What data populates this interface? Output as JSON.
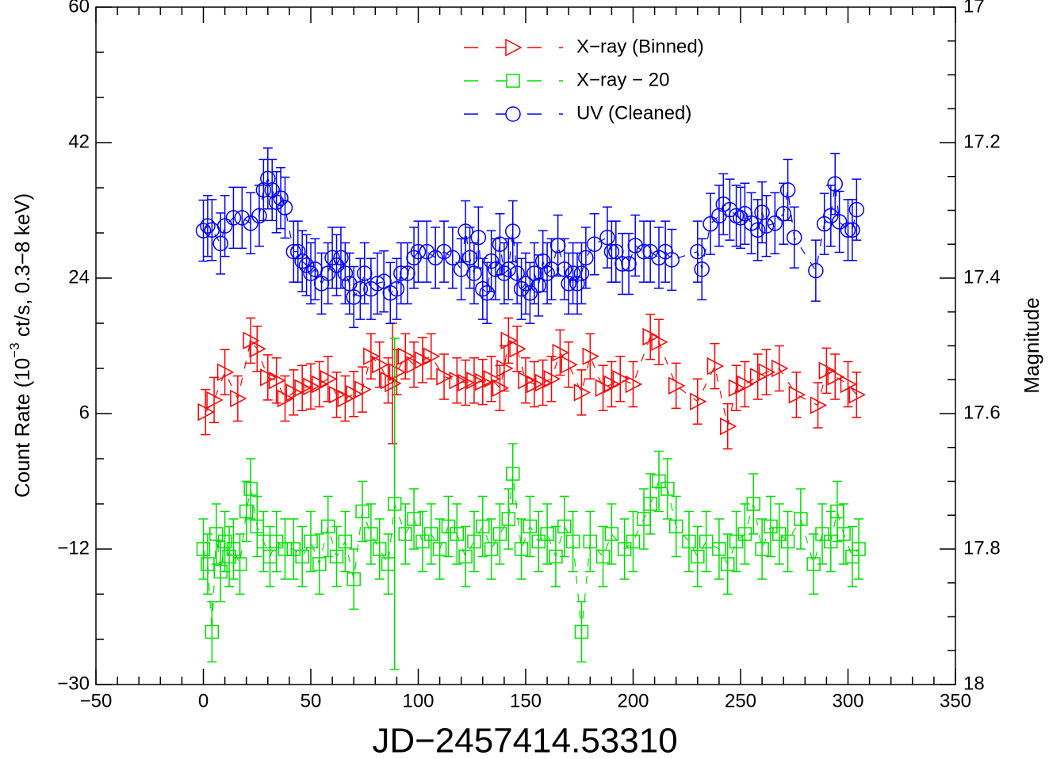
{
  "chart_data": {
    "type": "scatter",
    "xlabel": "JD−2457414.53310",
    "ylabel": [
      "Count Rate (10",
      "−3",
      " ct/s, 0.3−8 keV)"
    ],
    "y2label": "Magnitude",
    "xlim": [
      -50,
      350
    ],
    "xticks": [
      {
        "value": -50,
        "label": "−50"
      },
      0,
      50,
      100,
      150,
      200,
      250,
      300,
      350
    ],
    "ylim": [
      -30,
      60
    ],
    "yticks": [
      {
        "value": -30,
        "label": "−30"
      },
      {
        "value": -12,
        "label": "−12"
      },
      6,
      24,
      42,
      60
    ],
    "y2lim": [
      18,
      17
    ],
    "y2ticks": [
      18,
      17.8,
      17.6,
      17.4,
      17.2,
      17
    ],
    "legend": "upper center",
    "series": [
      {
        "name": "X−ray (Binned)",
        "color": "#ff0000",
        "marker": "triangle-right",
        "axis": "y",
        "x": [
          1,
          5,
          10,
          16,
          22,
          25,
          30,
          34,
          38,
          42,
          46,
          50,
          54,
          58,
          62,
          66,
          70,
          74,
          78,
          82,
          86,
          88,
          90,
          94,
          98,
          102,
          106,
          112,
          118,
          122,
          126,
          130,
          134,
          138,
          140,
          142,
          146,
          150,
          154,
          158,
          162,
          166,
          170,
          176,
          180,
          186,
          190,
          194,
          200,
          208,
          212,
          220,
          230,
          238,
          244,
          248,
          252,
          258,
          262,
          268,
          276,
          286,
          290,
          294,
          300,
          304
        ],
        "values": [
          6.2,
          7.8,
          11.5,
          8.0,
          15.7,
          14.6,
          10.8,
          10.4,
          8.0,
          8.8,
          9.4,
          9.6,
          9.9,
          10.6,
          8.5,
          8.0,
          8.6,
          9.2,
          13.6,
          12.5,
          10.4,
          10.0,
          11.5,
          13.6,
          12.5,
          13.1,
          13.6,
          10.9,
          10.4,
          10.1,
          10.4,
          10.2,
          10.6,
          9.4,
          12.0,
          15.7,
          14.6,
          10.4,
          9.9,
          10.1,
          10.6,
          14.1,
          12.5,
          8.8,
          13.6,
          9.4,
          9.9,
          10.6,
          9.9,
          16.2,
          15.5,
          9.7,
          7.6,
          12.3,
          4.3,
          9.4,
          9.9,
          10.9,
          11.5,
          12.0,
          8.5,
          7.1,
          11.7,
          10.9,
          9.9,
          8.5
        ],
        "errors": [
          3,
          3,
          3,
          3,
          3,
          3,
          3,
          3,
          3,
          3,
          3,
          3,
          3,
          3,
          3,
          3,
          3,
          3,
          3,
          3,
          3,
          8,
          3,
          3,
          3,
          3,
          3,
          3,
          3,
          3,
          3,
          3,
          3,
          3,
          3,
          3,
          3,
          3,
          3,
          3,
          3,
          3,
          3,
          3,
          3,
          3,
          3,
          3,
          3,
          3,
          3,
          3,
          3,
          3,
          3,
          3,
          3,
          3,
          3,
          3,
          3,
          3,
          3,
          3,
          3,
          3
        ]
      },
      {
        "name": "X−ray − 20",
        "color": "#00e000",
        "marker": "square",
        "axis": "y",
        "x": [
          0,
          2,
          4,
          6,
          8,
          10,
          12,
          14,
          17,
          20,
          22,
          25,
          28,
          31,
          34,
          38,
          42,
          46,
          50,
          54,
          58,
          62,
          66,
          70,
          74,
          78,
          82,
          86,
          89,
          94,
          98,
          102,
          106,
          110,
          114,
          118,
          122,
          126,
          130,
          134,
          138,
          142,
          144,
          148,
          152,
          156,
          160,
          164,
          168,
          172,
          176,
          180,
          186,
          190,
          196,
          200,
          205,
          208,
          212,
          216,
          220,
          226,
          230,
          234,
          240,
          244,
          248,
          252,
          256,
          260,
          264,
          268,
          272,
          278,
          284,
          288,
          292,
          295,
          298,
          302,
          305
        ],
        "values": [
          -12,
          -14,
          -23,
          -10,
          -15,
          -11,
          -13,
          -12,
          -14,
          -7,
          -4,
          -9,
          -11,
          -13,
          -11,
          -12,
          -12,
          -13,
          -11,
          -14,
          -9,
          -13,
          -11,
          -16,
          -7,
          -10,
          -12,
          -14,
          -6,
          -10,
          -8,
          -11,
          -10,
          -12,
          -9,
          -10,
          -13,
          -11,
          -9,
          -12,
          -10,
          -8,
          -2,
          -12,
          -9,
          -11,
          -10,
          -13,
          -9,
          -11,
          -23,
          -11,
          -13,
          -10,
          -12,
          -11,
          -8,
          -6,
          -3,
          -4,
          -9,
          -11,
          -13,
          -11,
          -12,
          -14,
          -11,
          -10,
          -6,
          -12,
          -9,
          -10,
          -11,
          -8,
          -14,
          -10,
          -11,
          -7,
          -10,
          -13,
          -12
        ],
        "errors": [
          4,
          4,
          4,
          4,
          4,
          4,
          4,
          4,
          4,
          4,
          4,
          4,
          4,
          4,
          4,
          4,
          4,
          4,
          4,
          4,
          4,
          4,
          4,
          4,
          4,
          4,
          4,
          4,
          22,
          4,
          4,
          4,
          4,
          4,
          4,
          4,
          4,
          4,
          4,
          4,
          4,
          4,
          4,
          4,
          4,
          4,
          4,
          4,
          4,
          4,
          4,
          4,
          4,
          4,
          4,
          4,
          4,
          4,
          4,
          4,
          4,
          4,
          4,
          4,
          4,
          4,
          4,
          4,
          4,
          4,
          4,
          4,
          4,
          4,
          4,
          4,
          4,
          4,
          4,
          4,
          4
        ]
      },
      {
        "name": "UV (Cleaned)",
        "color": "#0000ff",
        "marker": "circle",
        "axis": "y2",
        "x": [
          0,
          2,
          4,
          8,
          10,
          14,
          18,
          22,
          26,
          28,
          30,
          32,
          34,
          36,
          38,
          42,
          44,
          46,
          48,
          50,
          52,
          55,
          58,
          60,
          62,
          64,
          66,
          68,
          70,
          73,
          75,
          78,
          81,
          84,
          87,
          90,
          92,
          95,
          98,
          100,
          104,
          108,
          112,
          116,
          120,
          122,
          124,
          126,
          128,
          130,
          132,
          134,
          136,
          138,
          140,
          142,
          144,
          146,
          148,
          150,
          152,
          154,
          156,
          158,
          160,
          162,
          165,
          168,
          170,
          172,
          174,
          176,
          178,
          182,
          188,
          190,
          192,
          195,
          198,
          201,
          205,
          208,
          212,
          215,
          218,
          230,
          232,
          236,
          240,
          242,
          245,
          248,
          250,
          252,
          255,
          258,
          260,
          262,
          266,
          270,
          272,
          275,
          285,
          289,
          292,
          294,
          296,
          300,
          302,
          304
        ],
        "values": [
          17.33,
          17.323,
          17.329,
          17.349,
          17.323,
          17.311,
          17.311,
          17.319,
          17.308,
          17.27,
          17.253,
          17.27,
          17.288,
          17.282,
          17.296,
          17.361,
          17.361,
          17.375,
          17.381,
          17.393,
          17.387,
          17.408,
          17.393,
          17.37,
          17.381,
          17.37,
          17.393,
          17.408,
          17.428,
          17.416,
          17.393,
          17.416,
          17.408,
          17.405,
          17.422,
          17.416,
          17.393,
          17.393,
          17.37,
          17.361,
          17.361,
          17.37,
          17.361,
          17.37,
          17.387,
          17.331,
          17.37,
          17.393,
          17.34,
          17.416,
          17.422,
          17.375,
          17.387,
          17.35,
          17.393,
          17.387,
          17.331,
          17.393,
          17.416,
          17.408,
          17.422,
          17.393,
          17.411,
          17.375,
          17.393,
          17.387,
          17.352,
          17.387,
          17.408,
          17.393,
          17.408,
          17.393,
          17.37,
          17.35,
          17.34,
          17.361,
          17.361,
          17.379,
          17.379,
          17.352,
          17.361,
          17.361,
          17.37,
          17.361,
          17.373,
          17.361,
          17.387,
          17.32,
          17.308,
          17.291,
          17.299,
          17.308,
          17.311,
          17.305,
          17.319,
          17.329,
          17.303,
          17.323,
          17.319,
          17.305,
          17.27,
          17.34,
          17.389,
          17.32,
          17.308,
          17.261,
          17.317,
          17.329,
          17.329,
          17.299
        ],
        "errors": [
          0.045,
          0.045,
          0.045,
          0.045,
          0.045,
          0.045,
          0.045,
          0.045,
          0.045,
          0.045,
          0.045,
          0.045,
          0.045,
          0.045,
          0.045,
          0.045,
          0.045,
          0.045,
          0.045,
          0.045,
          0.045,
          0.045,
          0.045,
          0.045,
          0.045,
          0.045,
          0.045,
          0.045,
          0.045,
          0.045,
          0.045,
          0.045,
          0.045,
          0.045,
          0.045,
          0.045,
          0.045,
          0.045,
          0.045,
          0.045,
          0.045,
          0.045,
          0.045,
          0.045,
          0.045,
          0.045,
          0.045,
          0.045,
          0.045,
          0.045,
          0.045,
          0.045,
          0.045,
          0.045,
          0.045,
          0.045,
          0.045,
          0.045,
          0.045,
          0.045,
          0.045,
          0.045,
          0.045,
          0.045,
          0.045,
          0.045,
          0.045,
          0.045,
          0.045,
          0.045,
          0.045,
          0.045,
          0.045,
          0.045,
          0.045,
          0.045,
          0.045,
          0.045,
          0.045,
          0.045,
          0.045,
          0.045,
          0.045,
          0.045,
          0.045,
          0.045,
          0.045,
          0.045,
          0.045,
          0.045,
          0.045,
          0.045,
          0.045,
          0.045,
          0.045,
          0.045,
          0.045,
          0.045,
          0.045,
          0.045,
          0.045,
          0.045,
          0.045,
          0.045,
          0.045,
          0.045,
          0.045,
          0.045,
          0.045,
          0.045
        ]
      }
    ]
  }
}
